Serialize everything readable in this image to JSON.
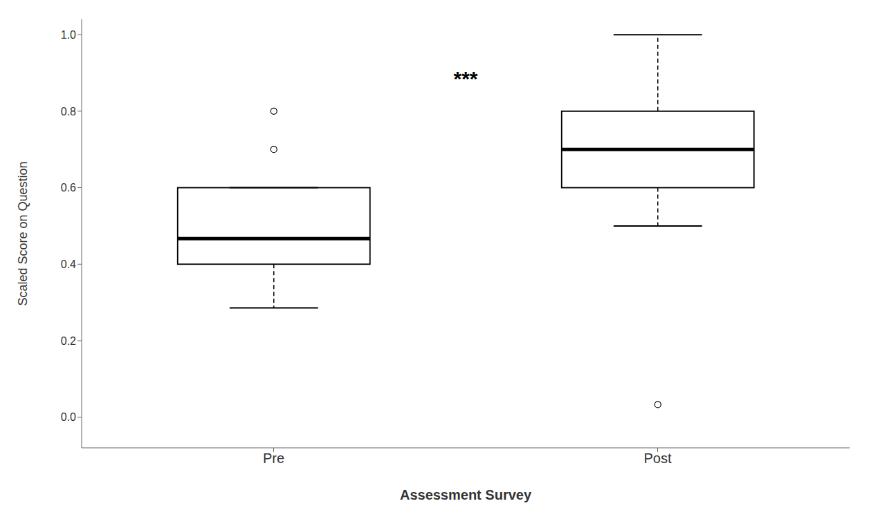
{
  "chart_data": {
    "type": "box",
    "categories": [
      "Pre",
      "Post"
    ],
    "boxes": [
      {
        "q1": 0.4,
        "median": 0.467,
        "q3": 0.6,
        "whisker_low": 0.286,
        "whisker_high": 0.6,
        "outliers": [
          0.7,
          0.8
        ]
      },
      {
        "q1": 0.6,
        "median": 0.7,
        "q3": 0.8,
        "whisker_low": 0.5,
        "whisker_high": 1.0,
        "outliers": [
          0.033
        ]
      }
    ],
    "xlabel": "Assessment Survey",
    "ylabel": "Scaled Score on Question",
    "ylim": [
      -0.08,
      1.04
    ],
    "yticks": [
      {
        "value": 0.0,
        "label": "0.0"
      },
      0.2,
      0.4,
      0.6,
      0.8,
      {
        "value": 1.0,
        "label": "1.0"
      }
    ],
    "annotations": [
      {
        "text": "***",
        "y": 0.885
      }
    ],
    "color": "#000000"
  }
}
